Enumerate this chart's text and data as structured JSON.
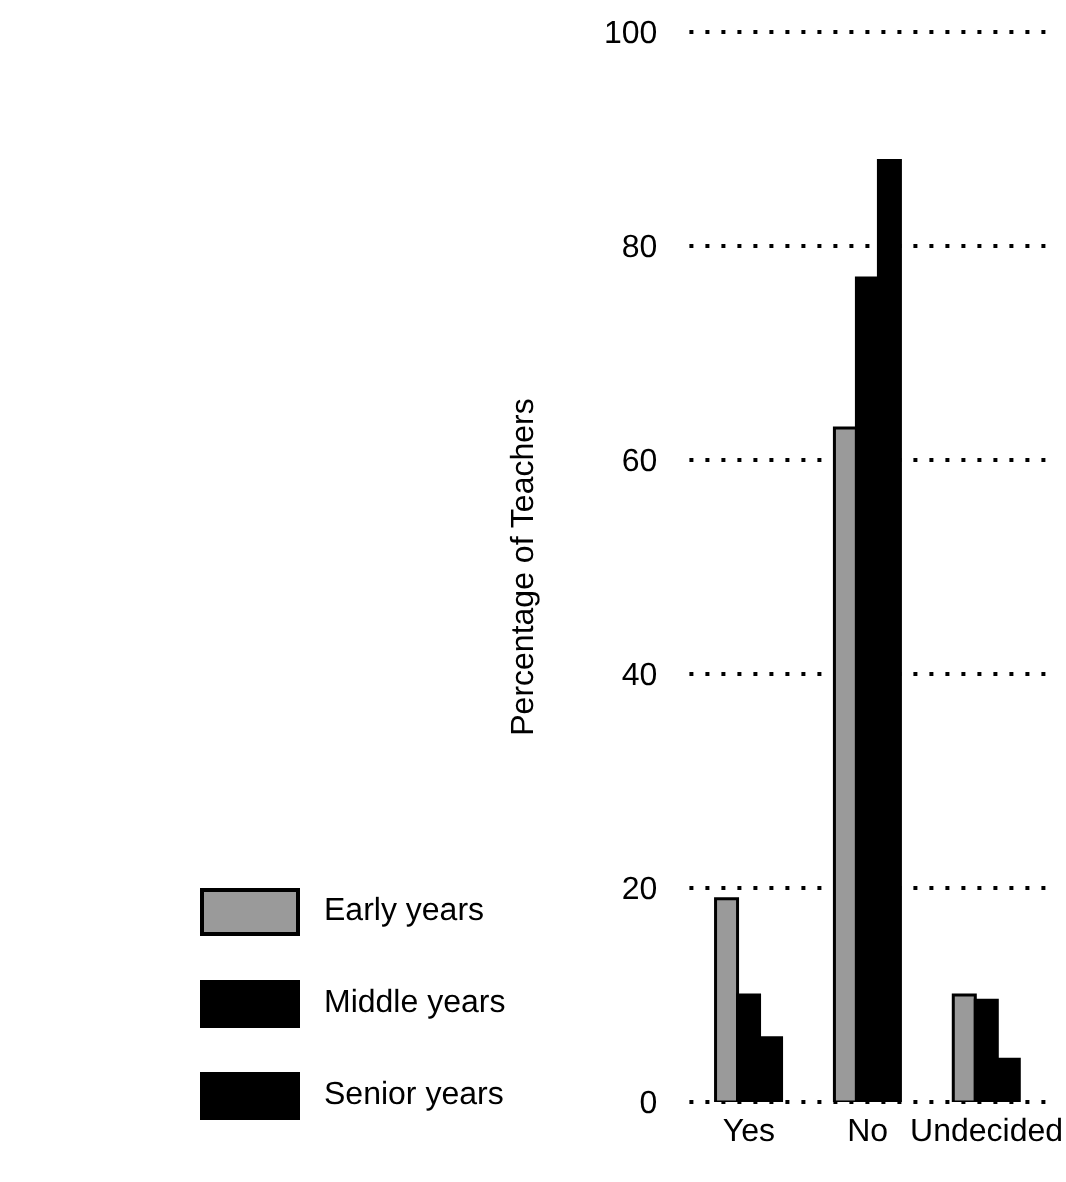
{
  "chart_data": {
    "type": "bar",
    "ylabel": "Percentage of Teachers",
    "categories": [
      "Yes",
      "No",
      "Undecided"
    ],
    "series": [
      {
        "name": "Early years",
        "color": "#9a9a9a",
        "values": [
          19,
          63,
          10
        ]
      },
      {
        "name": "Middle years",
        "color": "#000000",
        "values": [
          10,
          77,
          9.5
        ]
      },
      {
        "name": "Senior years",
        "color": "#000000",
        "values": [
          6,
          88,
          4
        ]
      }
    ],
    "ylim": [
      0,
      100
    ],
    "yticks": [
      0,
      20,
      40,
      60,
      80,
      100
    ],
    "grid": "y",
    "legend": "bottom left"
  }
}
